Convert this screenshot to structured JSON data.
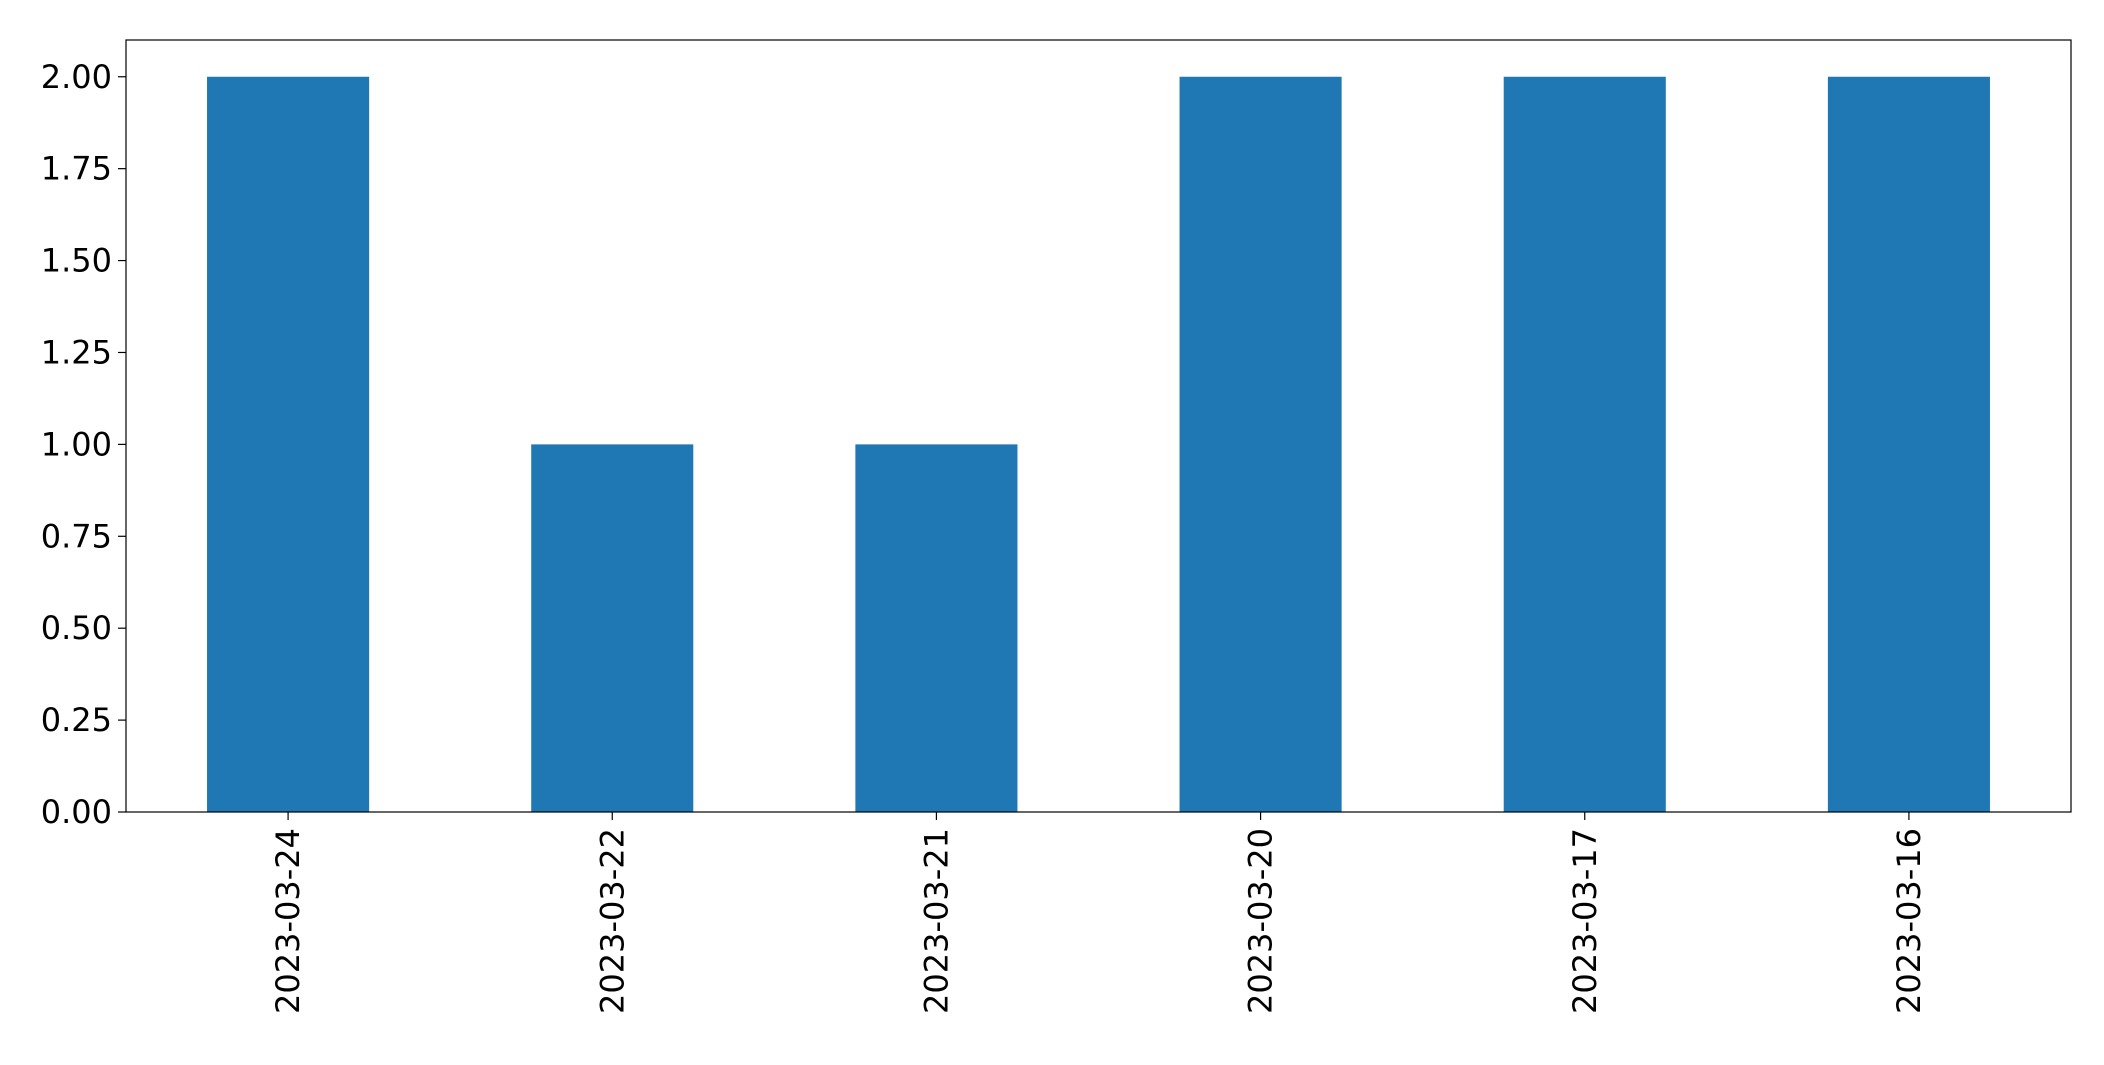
{
  "chart_data": {
    "type": "bar",
    "categories": [
      "2023-03-24",
      "2023-03-22",
      "2023-03-21",
      "2023-03-20",
      "2023-03-17",
      "2023-03-16"
    ],
    "values": [
      2,
      1,
      1,
      2,
      2,
      2
    ],
    "title": "",
    "xlabel": "",
    "ylabel": "",
    "ylim": [
      0,
      2.1
    ],
    "yticks": [
      "0.00",
      "0.25",
      "0.50",
      "0.75",
      "1.00",
      "1.25",
      "1.50",
      "1.75",
      "2.00"
    ],
    "bar_color": "#1f77b4",
    "grid": false,
    "legend": "none"
  }
}
